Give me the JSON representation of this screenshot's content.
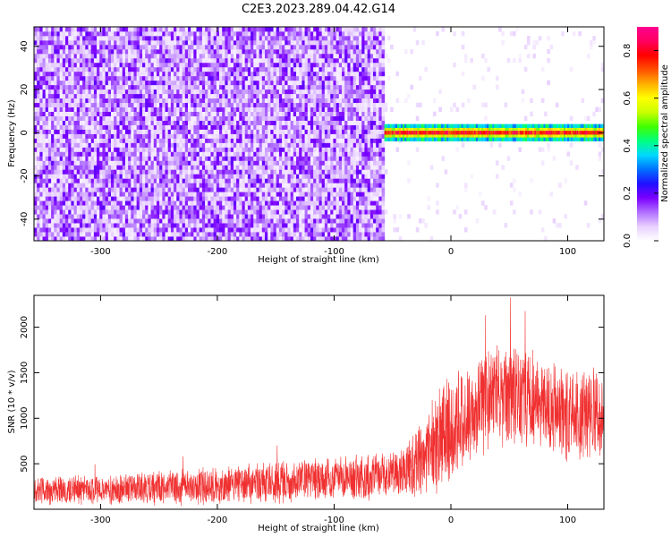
{
  "title": "C2E3.2023.289.04.42.G14",
  "chart_data": [
    {
      "type": "heatmap",
      "xlabel": "Height of straight line (km)",
      "ylabel": "Frequency (Hz)",
      "xlim": [
        -357,
        131
      ],
      "ylim": [
        -50,
        49
      ],
      "x_ticks": [
        -300,
        -200,
        -100,
        0,
        100
      ],
      "x_tick_labels": [
        "-300",
        "-200",
        "-100",
        "0",
        "100"
      ],
      "y_ticks": [
        -40,
        -20,
        0,
        20,
        40
      ],
      "y_tick_labels": [
        "-40",
        "-20",
        "0",
        "20",
        "40"
      ],
      "colorbar": {
        "label": "Normalized spectral amplitude",
        "range": [
          0,
          0.9
        ],
        "ticks": [
          0,
          0.2,
          0.4,
          0.6,
          0.8
        ],
        "tick_labels": [
          "0.0",
          "0.2",
          "0.4",
          "0.6",
          "0.8"
        ],
        "colors": [
          "#ffffff",
          "#e8d0ff",
          "#b070ff",
          "#7b00ff",
          "#2010ff",
          "#0070ff",
          "#00d8ff",
          "#00ff80",
          "#40ff00",
          "#c8ff00",
          "#ffff00",
          "#ffb000",
          "#ff5000",
          "#ff0000",
          "#ff0060",
          "#ff0090"
        ]
      },
      "regions": [
        {
          "x_range": [
            -357,
            -57
          ],
          "freq_range": [
            -50,
            49
          ],
          "amplitude_range": [
            0.02,
            0.2
          ],
          "description": "noise"
        },
        {
          "x_range": [
            -57,
            131
          ],
          "freq_range": [
            -1,
            1
          ],
          "amplitude_range": [
            0.3,
            0.9
          ],
          "description": "signal band"
        }
      ],
      "grid": false
    },
    {
      "type": "line",
      "xlabel": "Height of straight line (km)",
      "ylabel": "SNR (10 * v/v)",
      "xlim": [
        -357,
        131
      ],
      "ylim": [
        0,
        2350
      ],
      "x_ticks": [
        -300,
        -200,
        -100,
        0,
        100
      ],
      "x_tick_labels": [
        "-300",
        "-200",
        "-100",
        "0",
        "100"
      ],
      "y_ticks": [
        500,
        1000,
        1500,
        2000
      ],
      "y_tick_labels": [
        "500",
        "1000",
        "1500",
        "2000"
      ],
      "color": "#f03030",
      "envelope": {
        "x": [
          -357,
          -300,
          -250,
          -200,
          -150,
          -100,
          -60,
          -40,
          -25,
          -10,
          0,
          20,
          40,
          50,
          60,
          80,
          100,
          115,
          131
        ],
        "y_mean": [
          200,
          210,
          230,
          260,
          300,
          330,
          360,
          420,
          550,
          750,
          950,
          1100,
          1250,
          1300,
          1250,
          1150,
          1050,
          1050,
          1100
        ],
        "y_spread": [
          170,
          180,
          200,
          230,
          250,
          260,
          270,
          330,
          450,
          600,
          650,
          600,
          600,
          650,
          600,
          550,
          550,
          550,
          600
        ]
      },
      "peak_max": 2350,
      "grid": false
    }
  ]
}
